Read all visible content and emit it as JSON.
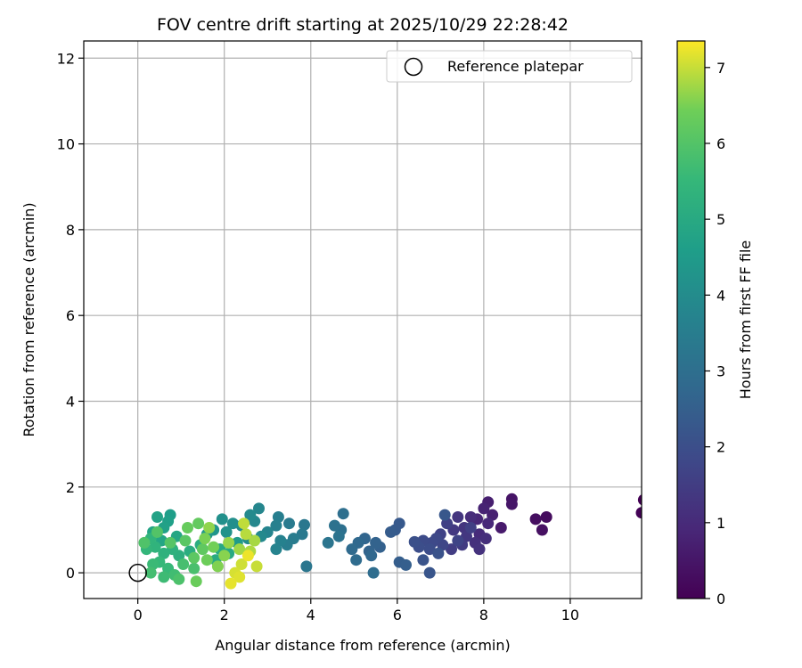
{
  "chart_data": {
    "type": "scatter",
    "title": "FOV centre drift starting at 2025/10/29 22:28:42",
    "xlabel": "Angular distance from reference (arcmin)",
    "ylabel": "Rotation from reference (arcmin)",
    "xlim": [
      -1.25,
      11.65
    ],
    "ylim": [
      -0.6,
      12.4
    ],
    "xticks": [
      0,
      2,
      4,
      6,
      8,
      10
    ],
    "yticks": [
      0,
      2,
      4,
      6,
      8,
      10,
      12
    ],
    "grid": true,
    "legend": {
      "position": "top-right",
      "entries": [
        "Reference platepar"
      ]
    },
    "colorbar": {
      "label": "Hours from first FF file",
      "min": 0,
      "max": 7.35,
      "ticks": [
        0,
        1,
        2,
        3,
        4,
        5,
        6,
        7
      ],
      "colormap": "viridis"
    },
    "reference_point": {
      "x": 0,
      "y": 0,
      "label": "Reference platepar"
    },
    "series": [
      {
        "name": "FOV centre drift",
        "points": [
          [
            11.7,
            1.7,
            0.0
          ],
          [
            11.65,
            1.4,
            0.05
          ],
          [
            9.45,
            1.3,
            0.25
          ],
          [
            9.2,
            1.25,
            0.3
          ],
          [
            9.35,
            1.0,
            0.35
          ],
          [
            8.65,
            1.72,
            0.45
          ],
          [
            8.65,
            1.6,
            0.5
          ],
          [
            8.4,
            1.05,
            0.6
          ],
          [
            8.1,
            1.65,
            0.7
          ],
          [
            8.2,
            1.35,
            0.75
          ],
          [
            8.0,
            1.5,
            0.8
          ],
          [
            7.85,
            1.25,
            0.9
          ],
          [
            8.1,
            1.15,
            0.95
          ],
          [
            7.9,
            0.9,
            1.0
          ],
          [
            7.7,
            1.3,
            1.05
          ],
          [
            8.05,
            0.8,
            1.1
          ],
          [
            7.8,
            0.7,
            1.15
          ],
          [
            7.9,
            0.55,
            1.2
          ],
          [
            7.55,
            1.05,
            1.25
          ],
          [
            7.4,
            1.3,
            1.3
          ],
          [
            7.6,
            0.85,
            1.35
          ],
          [
            7.3,
            1.0,
            1.4
          ],
          [
            7.5,
            0.65,
            1.45
          ],
          [
            7.25,
            0.55,
            1.5
          ],
          [
            7.7,
            1.05,
            1.55
          ],
          [
            7.15,
            1.15,
            1.6
          ],
          [
            7.0,
            0.9,
            1.65
          ],
          [
            7.4,
            0.75,
            1.7
          ],
          [
            7.05,
            0.65,
            1.75
          ],
          [
            6.9,
            0.8,
            1.8
          ],
          [
            6.8,
            0.7,
            1.85
          ],
          [
            6.6,
            0.75,
            1.9
          ],
          [
            6.75,
            0.55,
            1.95
          ],
          [
            6.5,
            0.6,
            2.0
          ],
          [
            6.4,
            0.72,
            2.05
          ],
          [
            6.95,
            0.45,
            2.1
          ],
          [
            6.6,
            0.3,
            2.15
          ],
          [
            6.75,
            0.0,
            2.2
          ],
          [
            7.1,
            1.35,
            2.25
          ],
          [
            6.05,
            1.15,
            2.3
          ],
          [
            5.95,
            1.0,
            2.35
          ],
          [
            5.85,
            0.95,
            2.4
          ],
          [
            6.05,
            0.25,
            2.45
          ],
          [
            6.2,
            0.18,
            2.5
          ],
          [
            5.6,
            0.6,
            2.55
          ],
          [
            5.5,
            0.7,
            2.6
          ],
          [
            5.35,
            0.5,
            2.65
          ],
          [
            5.25,
            0.8,
            2.7
          ],
          [
            5.4,
            0.4,
            2.75
          ],
          [
            5.1,
            0.7,
            2.8
          ],
          [
            4.95,
            0.55,
            2.85
          ],
          [
            5.05,
            0.3,
            2.9
          ],
          [
            5.45,
            0.0,
            2.95
          ],
          [
            4.75,
            1.38,
            3.0
          ],
          [
            4.7,
            1.0,
            3.05
          ],
          [
            4.55,
            1.1,
            3.1
          ],
          [
            4.65,
            0.85,
            3.15
          ],
          [
            4.4,
            0.7,
            3.2
          ],
          [
            3.9,
            0.15,
            3.25
          ],
          [
            3.85,
            1.12,
            3.3
          ],
          [
            3.8,
            0.9,
            3.35
          ],
          [
            3.5,
            1.15,
            3.4
          ],
          [
            3.6,
            0.8,
            3.45
          ],
          [
            3.45,
            0.65,
            3.5
          ],
          [
            3.25,
            1.3,
            3.55
          ],
          [
            3.2,
            1.1,
            3.6
          ],
          [
            3.3,
            0.75,
            3.65
          ],
          [
            3.2,
            0.55,
            3.7
          ],
          [
            3.0,
            0.95,
            3.75
          ],
          [
            2.8,
            1.5,
            3.8
          ],
          [
            2.7,
            1.2,
            3.85
          ],
          [
            2.85,
            0.85,
            3.9
          ],
          [
            2.6,
            1.35,
            3.95
          ],
          [
            2.4,
            1.1,
            4.0
          ],
          [
            2.55,
            0.8,
            4.05
          ],
          [
            2.2,
            1.15,
            4.1
          ],
          [
            1.95,
            1.25,
            4.15
          ],
          [
            2.05,
            0.95,
            4.2
          ],
          [
            1.75,
            1.0,
            4.3
          ],
          [
            1.6,
            0.9,
            4.4
          ],
          [
            2.3,
            0.7,
            4.5
          ],
          [
            0.75,
            1.35,
            4.6
          ],
          [
            0.7,
            1.2,
            4.65
          ],
          [
            0.6,
            1.05,
            4.7
          ],
          [
            0.45,
            1.3,
            4.75
          ],
          [
            0.35,
            0.95,
            4.8
          ],
          [
            0.55,
            0.75,
            4.85
          ],
          [
            0.9,
            0.85,
            4.9
          ],
          [
            1.9,
            0.55,
            4.95
          ],
          [
            2.1,
            0.45,
            5.0
          ],
          [
            1.8,
            0.3,
            5.05
          ],
          [
            1.45,
            0.65,
            5.1
          ],
          [
            1.2,
            0.5,
            5.15
          ],
          [
            0.95,
            0.4,
            5.2
          ],
          [
            0.8,
            0.55,
            5.25
          ],
          [
            0.6,
            0.45,
            5.3
          ],
          [
            0.4,
            0.6,
            5.35
          ],
          [
            0.3,
            0.8,
            5.4
          ],
          [
            0.2,
            0.55,
            5.45
          ],
          [
            0.5,
            0.25,
            5.5
          ],
          [
            0.7,
            0.1,
            5.55
          ],
          [
            0.35,
            0.2,
            5.6
          ],
          [
            0.6,
            -0.1,
            5.65
          ],
          [
            0.85,
            -0.05,
            5.7
          ],
          [
            0.3,
            0.0,
            5.75
          ],
          [
            1.05,
            0.2,
            5.8
          ],
          [
            1.3,
            0.1,
            5.85
          ],
          [
            0.95,
            -0.15,
            5.9
          ],
          [
            0.15,
            0.7,
            5.95
          ],
          [
            0.45,
            0.95,
            6.0
          ],
          [
            0.75,
            0.7,
            6.05
          ],
          [
            1.1,
            0.75,
            6.1
          ],
          [
            1.3,
            0.35,
            6.15
          ],
          [
            1.5,
            0.55,
            6.2
          ],
          [
            1.4,
            1.15,
            6.25
          ],
          [
            1.15,
            1.05,
            6.3
          ],
          [
            1.35,
            -0.2,
            6.35
          ],
          [
            1.6,
            0.3,
            6.4
          ],
          [
            1.75,
            0.6,
            6.45
          ],
          [
            1.55,
            0.8,
            6.5
          ],
          [
            1.85,
            0.15,
            6.55
          ],
          [
            2.0,
            0.4,
            6.6
          ],
          [
            1.65,
            1.05,
            6.65
          ],
          [
            2.1,
            0.7,
            6.7
          ],
          [
            2.35,
            0.55,
            6.75
          ],
          [
            2.7,
            0.75,
            6.8
          ],
          [
            2.6,
            0.5,
            6.85
          ],
          [
            2.5,
            0.9,
            6.9
          ],
          [
            2.45,
            1.15,
            6.95
          ],
          [
            2.75,
            0.15,
            7.0
          ],
          [
            2.4,
            0.2,
            7.05
          ],
          [
            2.25,
            0.0,
            7.1
          ],
          [
            2.35,
            -0.1,
            7.15
          ],
          [
            2.15,
            -0.25,
            7.2
          ],
          [
            2.55,
            0.4,
            7.25
          ]
        ]
      }
    ]
  }
}
